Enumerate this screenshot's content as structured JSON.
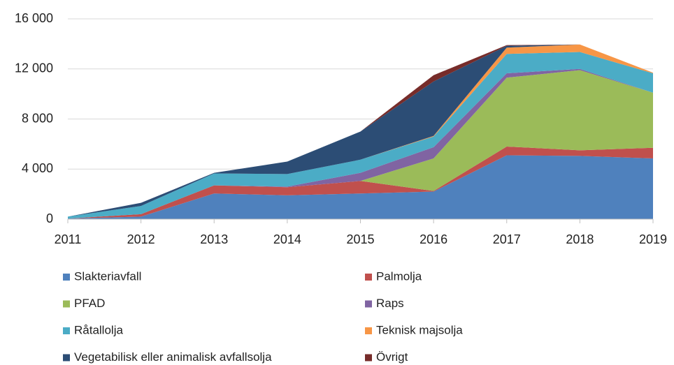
{
  "chart_data": {
    "type": "stacked_area",
    "categories": [
      "2011",
      "2012",
      "2013",
      "2014",
      "2015",
      "2016",
      "2017",
      "2018",
      "2019"
    ],
    "series": [
      {
        "name": "Slakteriavfall",
        "color": "#4f81bd",
        "values": [
          50,
          200,
          2050,
          1900,
          2050,
          2200,
          5100,
          5050,
          4850
        ]
      },
      {
        "name": "Palmolja",
        "color": "#c0504d",
        "values": [
          0,
          200,
          650,
          650,
          1000,
          50,
          700,
          450,
          850
        ]
      },
      {
        "name": "PFAD",
        "color": "#9bbb59",
        "values": [
          0,
          0,
          0,
          0,
          0,
          2600,
          5500,
          6400,
          4400
        ]
      },
      {
        "name": "Raps",
        "color": "#8064a2",
        "values": [
          0,
          0,
          0,
          50,
          650,
          900,
          350,
          100,
          0
        ]
      },
      {
        "name": "Råtallolja",
        "color": "#4bacc6",
        "values": [
          150,
          650,
          950,
          1000,
          1050,
          850,
          1550,
          1350,
          1550
        ]
      },
      {
        "name": "Teknisk majsolja",
        "color": "#f79646",
        "values": [
          0,
          0,
          0,
          0,
          0,
          50,
          500,
          600,
          50
        ]
      },
      {
        "name": "Vegetabilisk eller animalisk avfallsolja",
        "color": "#2c4d75",
        "values": [
          0,
          250,
          50,
          1000,
          2250,
          4350,
          150,
          0,
          0
        ]
      },
      {
        "name": "Övrigt",
        "color": "#772c2a",
        "values": [
          0,
          0,
          0,
          0,
          0,
          500,
          50,
          0,
          0
        ]
      }
    ],
    "ylim": [
      0,
      16000
    ],
    "yticks": [
      0,
      {
        "value": 4000,
        "label": "4 000"
      },
      {
        "value": 8000,
        "label": "8 000"
      },
      {
        "value": 12000,
        "label": "12 000"
      },
      {
        "value": 16000,
        "label": "16 000"
      }
    ],
    "grid": true,
    "legend": "bottom"
  }
}
